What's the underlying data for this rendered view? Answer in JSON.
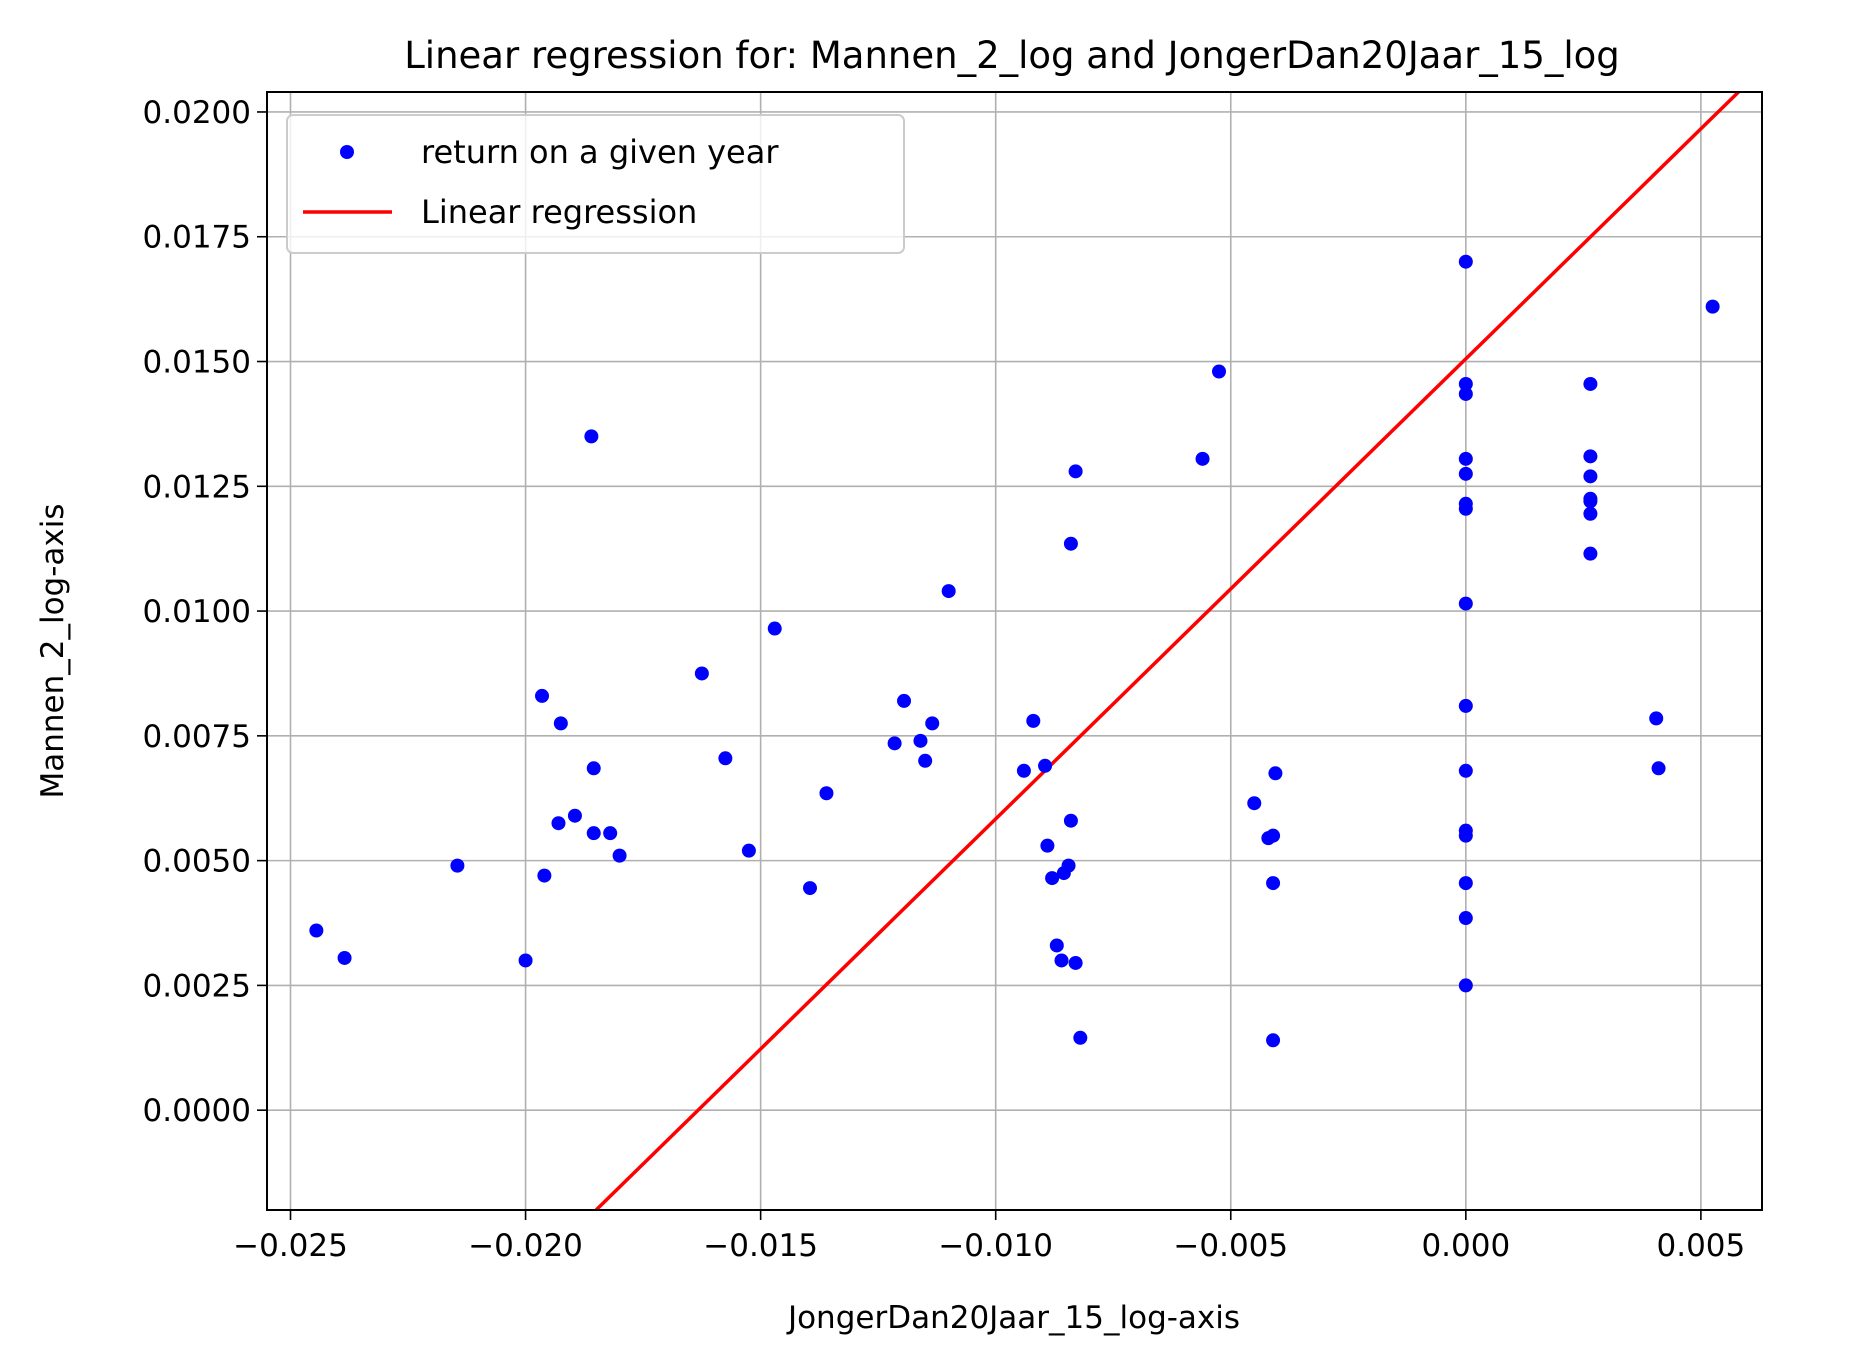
{
  "chart_data": {
    "type": "scatter",
    "title": "Linear regression for: Mannen_2_log and JongerDan20Jaar_15_log",
    "xlabel": "JongerDan20Jaar_15_log-axis",
    "ylabel": "Mannen_2_log-axis",
    "xlim": [
      -0.0255,
      0.0063
    ],
    "ylim": [
      -0.002,
      0.0204
    ],
    "xticks": [
      -0.025,
      -0.02,
      -0.015,
      -0.01,
      -0.005,
      0.0,
      0.005
    ],
    "xtick_labels": [
      "−0.025",
      "−0.020",
      "−0.015",
      "−0.010",
      "−0.005",
      "0.000",
      "0.005"
    ],
    "yticks": [
      0.0,
      0.0025,
      0.005,
      0.0075,
      0.01,
      0.0125,
      0.015,
      0.0175,
      0.02
    ],
    "ytick_labels": [
      "0.0000",
      "0.0025",
      "0.0050",
      "0.0075",
      "0.0100",
      "0.0125",
      "0.0150",
      "0.0175",
      "0.0200"
    ],
    "grid": true,
    "legend_position": "top-left",
    "series": [
      {
        "name": "return on a given year",
        "kind": "scatter",
        "color": "#0000ff",
        "points": [
          [
            -0.02445,
            0.0036
          ],
          [
            -0.02385,
            0.00305
          ],
          [
            -0.02145,
            0.0049
          ],
          [
            -0.02,
            0.003
          ],
          [
            -0.01965,
            0.0083
          ],
          [
            -0.0196,
            0.0047
          ],
          [
            -0.0193,
            0.00575
          ],
          [
            -0.01925,
            0.00775
          ],
          [
            -0.01895,
            0.0059
          ],
          [
            -0.0186,
            0.0135
          ],
          [
            -0.01855,
            0.00685
          ],
          [
            -0.01855,
            0.00555
          ],
          [
            -0.0182,
            0.00555
          ],
          [
            -0.018,
            0.0051
          ],
          [
            -0.01625,
            0.00875
          ],
          [
            -0.01575,
            0.00705
          ],
          [
            -0.01525,
            0.0052
          ],
          [
            -0.0147,
            0.00965
          ],
          [
            -0.01395,
            0.00445
          ],
          [
            -0.0136,
            0.00635
          ],
          [
            -0.01215,
            0.00735
          ],
          [
            -0.01195,
            0.0082
          ],
          [
            -0.0116,
            0.0074
          ],
          [
            -0.0115,
            0.007
          ],
          [
            -0.01135,
            0.00775
          ],
          [
            -0.011,
            0.0104
          ],
          [
            -0.0094,
            0.0068
          ],
          [
            -0.0092,
            0.0078
          ],
          [
            -0.00895,
            0.0069
          ],
          [
            -0.0089,
            0.0053
          ],
          [
            -0.0088,
            0.00465
          ],
          [
            -0.0087,
            0.0033
          ],
          [
            -0.0086,
            0.003
          ],
          [
            -0.00855,
            0.00475
          ],
          [
            -0.00845,
            0.0049
          ],
          [
            -0.0084,
            0.01135
          ],
          [
            -0.0084,
            0.0058
          ],
          [
            -0.0083,
            0.0128
          ],
          [
            -0.0083,
            0.00295
          ],
          [
            -0.0082,
            0.00145
          ],
          [
            -0.0056,
            0.01305
          ],
          [
            -0.00525,
            0.0148
          ],
          [
            -0.0045,
            0.00615
          ],
          [
            -0.0042,
            0.00545
          ],
          [
            -0.0041,
            0.0055
          ],
          [
            -0.0041,
            0.00455
          ],
          [
            -0.0041,
            0.0014
          ],
          [
            -0.00405,
            0.00675
          ],
          [
            0.0,
            0.017
          ],
          [
            0.0,
            0.01455
          ],
          [
            0.0,
            0.01435
          ],
          [
            0.0,
            0.01305
          ],
          [
            0.0,
            0.01275
          ],
          [
            0.0,
            0.01215
          ],
          [
            0.0,
            0.01205
          ],
          [
            0.0,
            0.01015
          ],
          [
            0.0,
            0.0081
          ],
          [
            0.0,
            0.0068
          ],
          [
            0.0,
            0.0056
          ],
          [
            0.0,
            0.0055
          ],
          [
            0.0,
            0.00455
          ],
          [
            0.0,
            0.00385
          ],
          [
            0.0,
            0.0025
          ],
          [
            0.00265,
            0.01455
          ],
          [
            0.00265,
            0.0131
          ],
          [
            0.00265,
            0.0127
          ],
          [
            0.00265,
            0.01225
          ],
          [
            0.00265,
            0.0122
          ],
          [
            0.00265,
            0.01195
          ],
          [
            0.00265,
            0.01115
          ],
          [
            0.00405,
            0.00785
          ],
          [
            0.0041,
            0.00685
          ],
          [
            0.00525,
            0.0161
          ]
        ]
      },
      {
        "name": "Linear regression",
        "kind": "line",
        "color": "#ff0000",
        "points": [
          [
            -0.0185,
            -0.002
          ],
          [
            0.0058,
            0.0204
          ]
        ]
      }
    ]
  }
}
